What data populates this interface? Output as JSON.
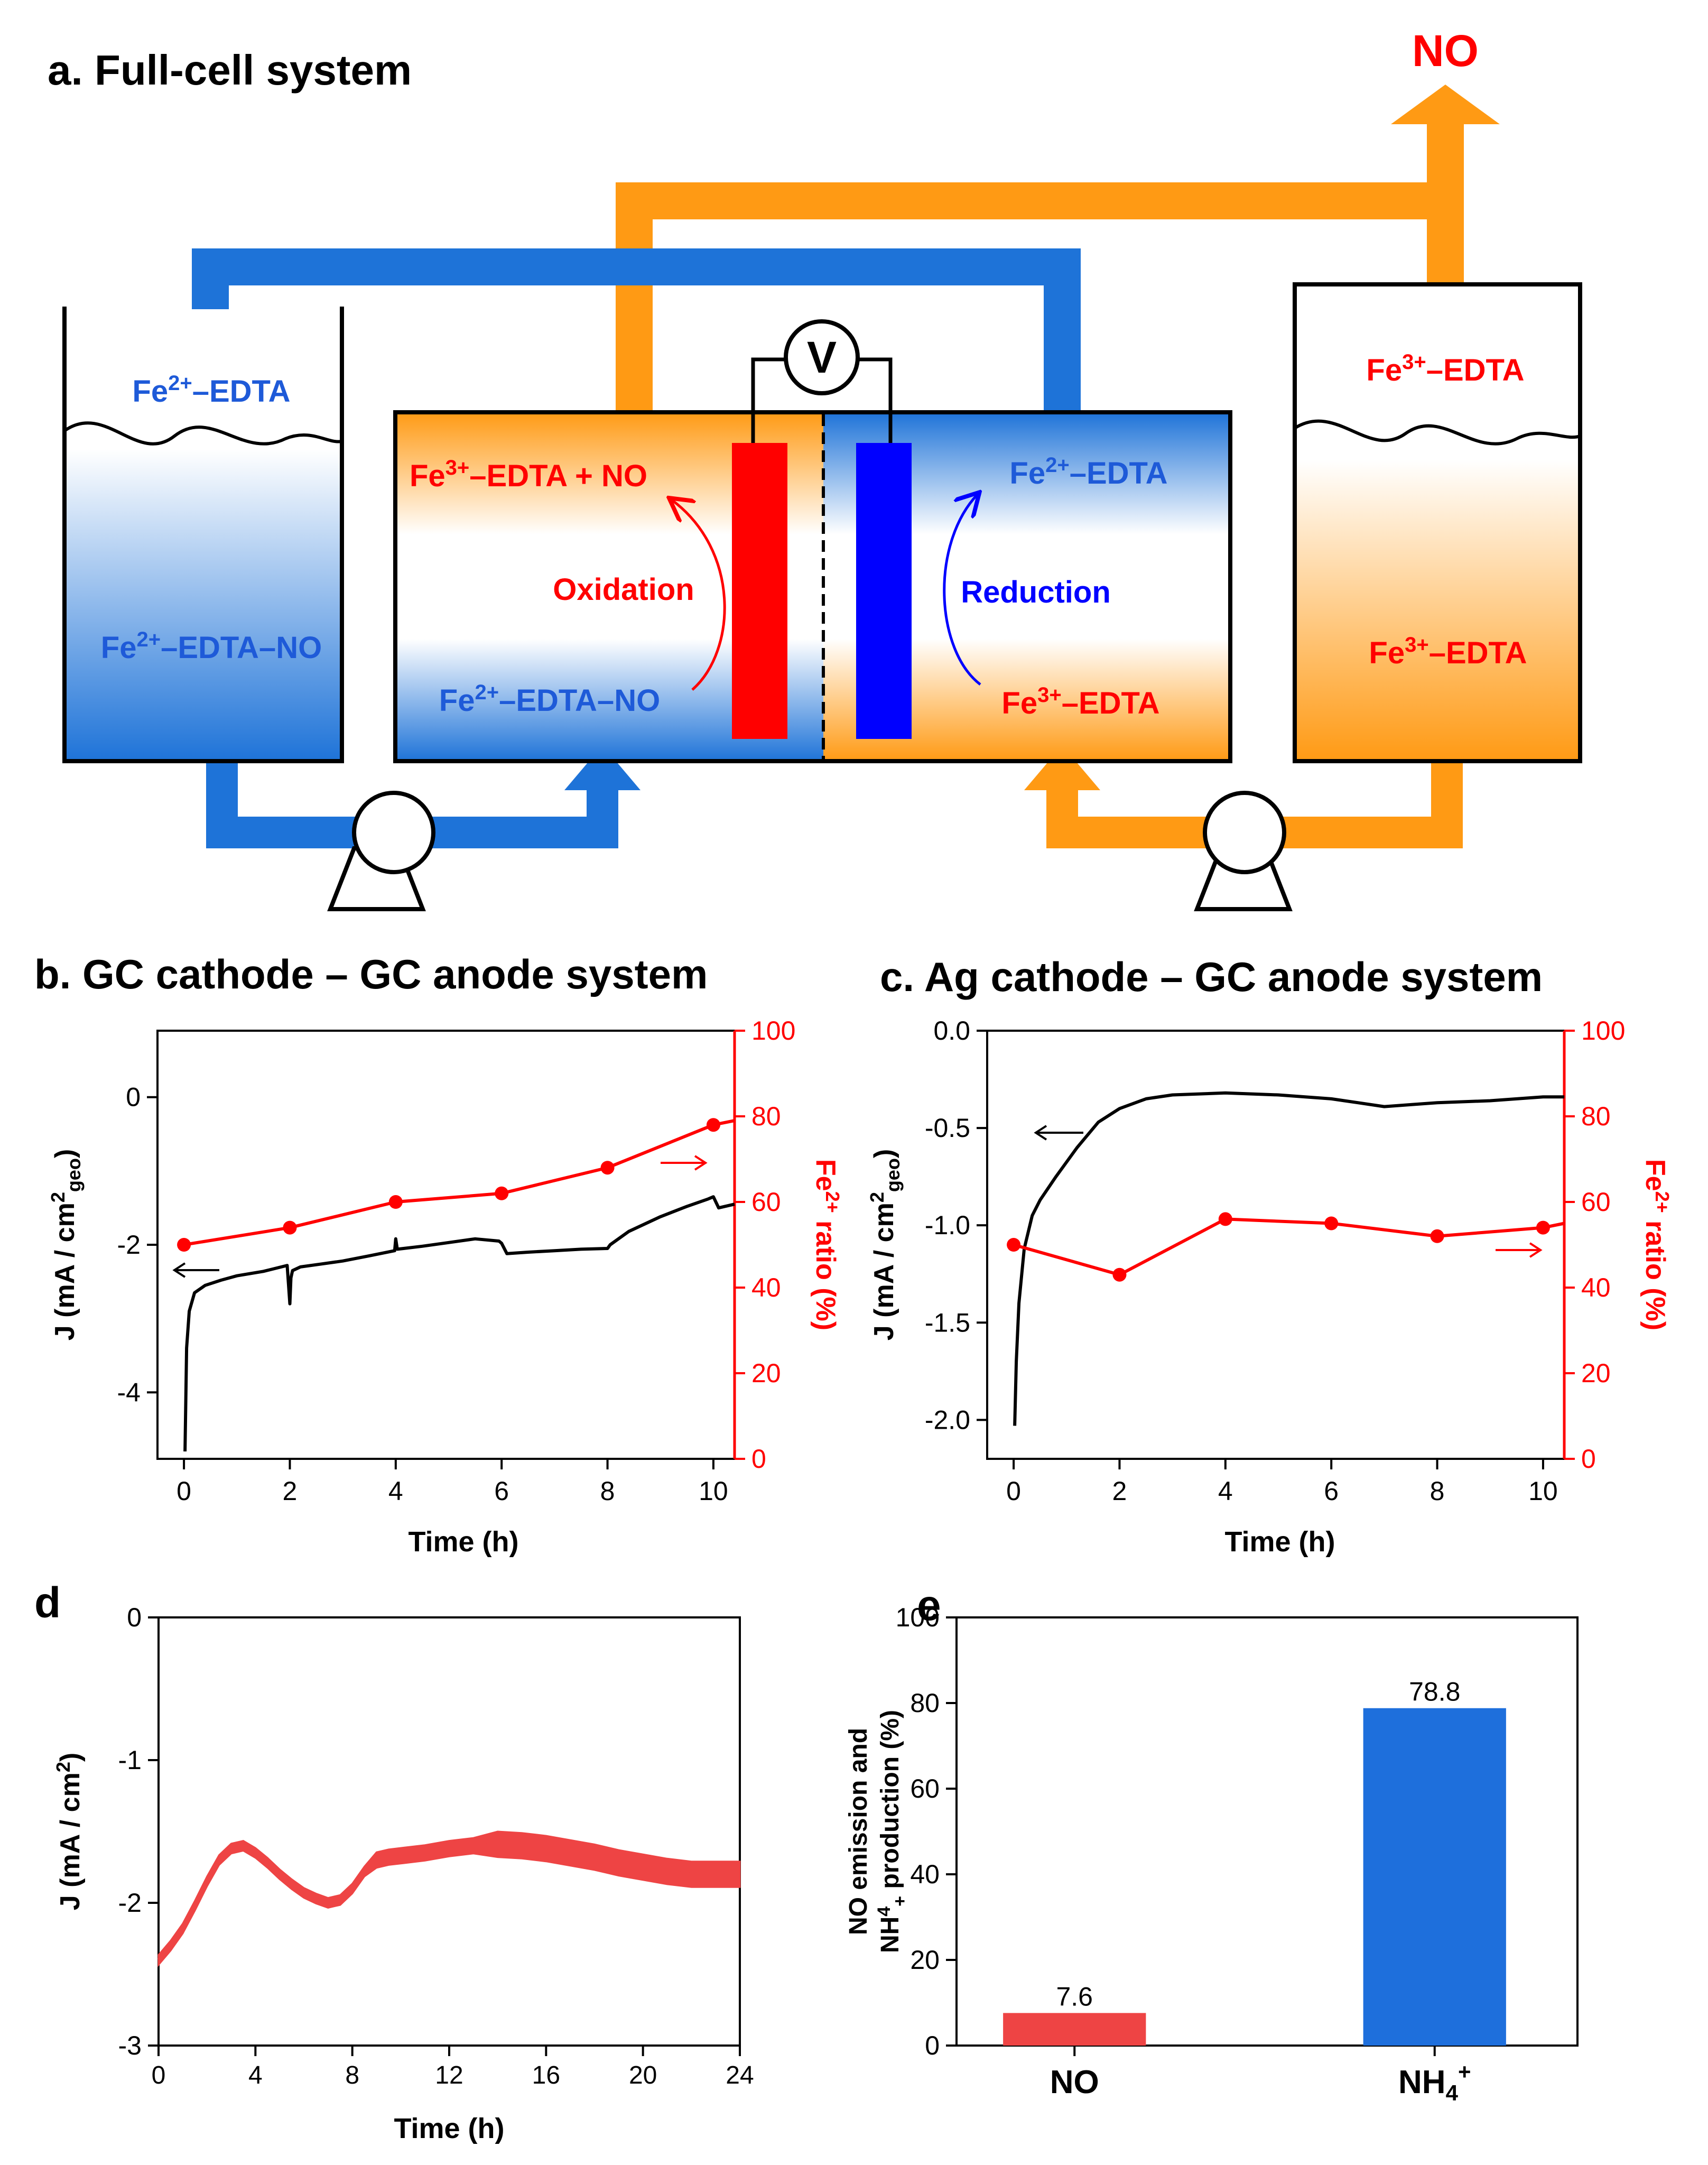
{
  "panel_a": {
    "title": "a. Full-cell system",
    "no_out": "NO",
    "voltmeter": "V",
    "left_tank_top": "Fe2+–EDTA",
    "left_tank_bottom": "Fe2+–EDTA–NO",
    "right_tank_top": "Fe3+–EDTA",
    "right_tank_bottom": "Fe3+–EDTA",
    "anode_top": "Fe3+–EDTA + NO",
    "anode_bottom": "Fe2+–EDTA–NO",
    "anode_process": "Oxidation",
    "cathode_top": "Fe2+–EDTA",
    "cathode_bottom": "Fe3+–EDTA",
    "cathode_process": "Reduction",
    "colors": {
      "orange": "#FF9A14",
      "blue": "#1E73D8",
      "red": "#FF0000",
      "darkblue": "#0000FF"
    }
  },
  "chart_data": [
    {
      "id": "b",
      "type": "line",
      "title": "b. GC cathode – GC anode system",
      "xlabel": "Time (h)",
      "ylabel": "J (mA / cm2geo)",
      "ylabel_right": "Fe2+ ratio (%)",
      "xlim": [
        -0.5,
        10.4
      ],
      "ylim": [
        -4.9,
        0.9
      ],
      "ylim_right": [
        0,
        100
      ],
      "xticks": [
        0,
        2,
        4,
        6,
        8,
        10
      ],
      "yticks": [
        -4,
        -2,
        0
      ],
      "yticks_right": [
        0,
        20,
        40,
        60,
        80,
        100
      ],
      "series": [
        {
          "name": "J",
          "axis": "left",
          "color": "#000000",
          "x": [
            0.02,
            0.05,
            0.1,
            0.2,
            0.4,
            0.7,
            1.0,
            1.5,
            1.95,
            2.0,
            2.02,
            2.05,
            2.2,
            2.6,
            3.0,
            3.5,
            3.98,
            4.0,
            4.03,
            4.5,
            5.0,
            5.5,
            5.95,
            6.0,
            6.1,
            6.5,
            7.0,
            7.5,
            8.0,
            8.05,
            8.4,
            9.0,
            9.5,
            9.9,
            10.0,
            10.1,
            10.4
          ],
          "y": [
            -4.8,
            -3.4,
            -2.9,
            -2.65,
            -2.55,
            -2.48,
            -2.42,
            -2.36,
            -2.28,
            -2.8,
            -2.45,
            -2.35,
            -2.3,
            -2.26,
            -2.22,
            -2.15,
            -2.08,
            -1.92,
            -2.06,
            -2.02,
            -1.97,
            -1.92,
            -1.95,
            -1.98,
            -2.12,
            -2.1,
            -2.08,
            -2.06,
            -2.05,
            -2.0,
            -1.82,
            -1.62,
            -1.48,
            -1.38,
            -1.35,
            -1.5,
            -1.45
          ]
        },
        {
          "name": "Fe2+ ratio",
          "axis": "right",
          "color": "#FF0000",
          "x": [
            0,
            2,
            4,
            6,
            8,
            10,
            10.4
          ],
          "y": [
            50,
            54,
            60,
            62,
            68,
            78,
            79
          ]
        }
      ],
      "annotations": [
        "arrow-left at J curve",
        "arrow-right at Fe2+ ratio curve"
      ]
    },
    {
      "id": "c",
      "type": "line",
      "title": "c. Ag cathode – GC anode system",
      "xlabel": "Time (h)",
      "ylabel": "J (mA / cm2geo)",
      "ylabel_right": "Fe2+ ratio (%)",
      "xlim": [
        -0.5,
        10.4
      ],
      "ylim": [
        -2.2,
        0.0
      ],
      "ylim_right": [
        0,
        100
      ],
      "xticks": [
        0,
        2,
        4,
        6,
        8,
        10
      ],
      "yticks": [
        -2.0,
        -1.5,
        -1.0,
        -0.5,
        0.0
      ],
      "yticks_right": [
        0,
        20,
        40,
        60,
        80,
        100
      ],
      "series": [
        {
          "name": "J",
          "axis": "left",
          "color": "#000000",
          "x": [
            0.02,
            0.05,
            0.1,
            0.2,
            0.35,
            0.5,
            0.8,
            1.2,
            1.6,
            2.0,
            2.5,
            3.0,
            4.0,
            5.0,
            6.0,
            6.5,
            7.0,
            7.5,
            8.0,
            9.0,
            10.0,
            10.4
          ],
          "y": [
            -2.03,
            -1.7,
            -1.4,
            -1.12,
            -0.95,
            -0.87,
            -0.75,
            -0.6,
            -0.47,
            -0.4,
            -0.35,
            -0.33,
            -0.32,
            -0.33,
            -0.35,
            -0.37,
            -0.39,
            -0.38,
            -0.37,
            -0.36,
            -0.34,
            -0.34
          ]
        },
        {
          "name": "Fe2+ ratio",
          "axis": "right",
          "color": "#FF0000",
          "x": [
            0,
            2,
            4,
            6,
            8,
            10,
            10.4
          ],
          "y": [
            50,
            43,
            56,
            55,
            52,
            54,
            55
          ]
        }
      ],
      "annotations": [
        "arrow-left at J curve",
        "arrow-right at Fe2+ ratio curve"
      ]
    },
    {
      "id": "d",
      "type": "line",
      "title": "d",
      "xlabel": "Time (h)",
      "ylabel": "J (mA / cm2)",
      "xlim": [
        0,
        24
      ],
      "ylim": [
        -3,
        0
      ],
      "xticks": [
        0,
        4,
        8,
        12,
        16,
        20,
        24
      ],
      "yticks": [
        -3,
        -2,
        -1,
        0
      ],
      "series": [
        {
          "name": "J",
          "color": "#EE4444",
          "x": [
            0,
            0.5,
            1,
            1.5,
            2,
            2.5,
            3,
            3.5,
            4,
            4.5,
            5,
            5.5,
            6,
            6.5,
            7,
            7.5,
            8,
            8.5,
            9,
            9.5,
            10,
            11,
            12,
            13,
            14,
            15,
            16,
            17,
            18,
            19,
            20,
            21,
            22,
            23,
            24
          ],
          "y": [
            -2.4,
            -2.3,
            -2.18,
            -2.02,
            -1.85,
            -1.7,
            -1.62,
            -1.6,
            -1.65,
            -1.72,
            -1.8,
            -1.87,
            -1.93,
            -1.97,
            -2.0,
            -1.98,
            -1.9,
            -1.78,
            -1.7,
            -1.68,
            -1.67,
            -1.65,
            -1.62,
            -1.6,
            -1.59,
            -1.6,
            -1.62,
            -1.65,
            -1.68,
            -1.72,
            -1.75,
            -1.78,
            -1.8,
            -1.8,
            -1.8
          ]
        }
      ]
    },
    {
      "id": "e",
      "type": "bar",
      "title": "e",
      "categories": [
        "NO",
        "NH4+"
      ],
      "values": [
        7.6,
        78.8
      ],
      "value_labels": [
        "7.6",
        "78.8"
      ],
      "colors": [
        "#EE4444",
        "#1E6FDC"
      ],
      "ylabel": "NO emission and NH4+ production (%)",
      "ylim": [
        0,
        100
      ],
      "yticks": [
        0,
        20,
        40,
        60,
        80,
        100
      ]
    }
  ]
}
